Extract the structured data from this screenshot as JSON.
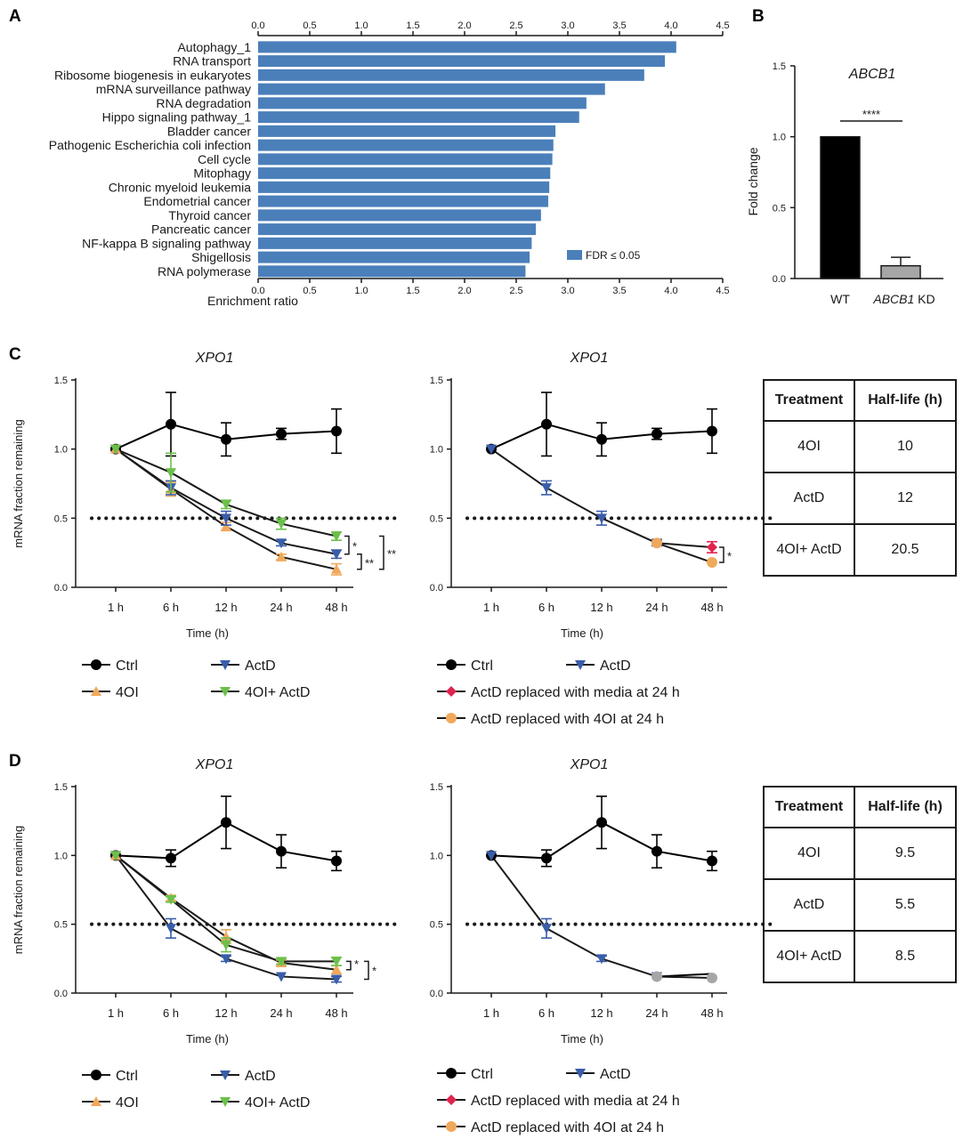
{
  "panels": {
    "A": "A",
    "B": "B",
    "C": "C",
    "D": "D"
  },
  "chart_data": [
    {
      "id": "A",
      "type": "bar",
      "orientation": "horizontal",
      "categories": [
        "Autophagy_1",
        "RNA transport",
        "Ribosome biogenesis in eukaryotes",
        "mRNA surveillance pathway",
        "RNA degradation",
        "Hippo signaling pathway_1",
        "Bladder cancer",
        "Pathogenic Escherichia coli infection",
        "Cell cycle",
        "Mitophagy",
        "Chronic myeloid leukemia",
        "Endometrial cancer",
        "Thyroid cancer",
        "Pancreatic cancer",
        "NF-kappa B signaling pathway",
        "Shigellosis",
        "RNA polymerase"
      ],
      "values": [
        4.05,
        3.94,
        3.74,
        3.36,
        3.18,
        3.11,
        2.88,
        2.86,
        2.85,
        2.83,
        2.82,
        2.81,
        2.74,
        2.69,
        2.65,
        2.63,
        2.59
      ],
      "xlim": [
        0,
        4.5
      ],
      "ticks": [
        "0.0",
        "0.5",
        "1.0",
        "1.5",
        "2.0",
        "2.5",
        "3.0",
        "3.5",
        "4.0",
        "4.5"
      ],
      "xlabel": "Enrichment ratio",
      "legend": "FDR ≤ 0.05",
      "legend_position": "bottom-right",
      "color": "#4a7fba"
    },
    {
      "id": "B",
      "type": "bar",
      "title": "ABCB1",
      "categories": [
        "WT",
        "ABCB1 KD"
      ],
      "category_plain": "WT",
      "category_italic": "ABCB1",
      "category_suffix": " KD",
      "values": [
        1.0,
        0.09
      ],
      "errors": [
        0,
        0.06
      ],
      "colors": [
        "#000000",
        "#a6a6a6"
      ],
      "ylabel": "Fold change",
      "ylim": [
        0,
        1.5
      ],
      "ticks": [
        "0.0",
        "0.5",
        "1.0",
        "1.5"
      ],
      "significance": "****"
    },
    {
      "id": "C1",
      "type": "line",
      "title": "XPO1",
      "ylabel": "mRNA fraction remaining",
      "xlabel": "Time (h)",
      "categories": [
        "1 h",
        "6 h",
        "12 h",
        "24 h",
        "48 h"
      ],
      "ylim": [
        0,
        1.5
      ],
      "ticks": [
        "0.0",
        "0.5",
        "1.0",
        "1.5"
      ],
      "threshold": 0.5,
      "series": [
        {
          "name": "Ctrl",
          "values": [
            1.0,
            1.18,
            1.07,
            1.11,
            1.13
          ],
          "errors": [
            0.01,
            0.23,
            0.12,
            0.04,
            0.16
          ],
          "color": "#000000",
          "marker": "circle"
        },
        {
          "name": "4OI",
          "values": [
            1.0,
            0.71,
            0.44,
            0.22,
            0.13
          ],
          "errors": [
            0.01,
            0.05,
            0.03,
            0.02,
            0.04
          ],
          "color": "#f0a95b",
          "marker": "triangle-up"
        },
        {
          "name": "ActD",
          "values": [
            1.0,
            0.72,
            0.5,
            0.32,
            0.24
          ],
          "errors": [
            0.01,
            0.05,
            0.05,
            0.02,
            0.03
          ],
          "color": "#3a5daa",
          "marker": "triangle-down"
        },
        {
          "name": "4OI+ ActD",
          "values": [
            1.0,
            0.83,
            0.6,
            0.46,
            0.37
          ],
          "errors": [
            0.01,
            0.14,
            0.03,
            0.04,
            0.03
          ],
          "color": "#6cc04a",
          "marker": "triangle-down"
        }
      ],
      "legend": [
        [
          "Ctrl",
          "ActD"
        ],
        [
          "4OI",
          "4OI+ ActD"
        ]
      ],
      "sig": [
        "*",
        "**",
        "**"
      ]
    },
    {
      "id": "C2",
      "type": "line",
      "title": "XPO1",
      "xlabel": "Time (h)",
      "categories": [
        "1 h",
        "6 h",
        "12 h",
        "24 h",
        "48 h"
      ],
      "ylim": [
        0,
        1.5
      ],
      "ticks": [
        "0.0",
        "0.5",
        "1.0",
        "1.5"
      ],
      "threshold": 0.5,
      "series": [
        {
          "name": "Ctrl",
          "values": [
            1.0,
            1.18,
            1.07,
            1.11,
            1.13
          ],
          "errors": [
            0.01,
            0.23,
            0.12,
            0.04,
            0.16
          ],
          "color": "#000000",
          "marker": "circle"
        },
        {
          "name": "ActD",
          "values": [
            1.0,
            0.72,
            0.5,
            0.32,
            null
          ],
          "errors": [
            0.01,
            0.05,
            0.05,
            0.02,
            null
          ],
          "color": "#3a5daa",
          "marker": "triangle-down"
        },
        {
          "name": "ActD replaced with media at 24 h",
          "values": [
            null,
            null,
            null,
            0.32,
            0.29
          ],
          "errors": [
            null,
            null,
            null,
            0,
            0.04
          ],
          "color": "#e0234e",
          "marker": "diamond"
        },
        {
          "name": "ActD replaced with 4OI at 24 h",
          "values": [
            null,
            null,
            null,
            0.32,
            0.18
          ],
          "errors": [
            null,
            null,
            null,
            0,
            0.01
          ],
          "color": "#f0a95b",
          "marker": "circle"
        }
      ],
      "legend": [
        [
          "Ctrl",
          "ActD"
        ],
        [
          "ActD replaced with media at 24 h"
        ],
        [
          "ActD replaced with 4OI at 24 h"
        ]
      ],
      "sig": [
        "*"
      ]
    },
    {
      "id": "D1",
      "type": "line",
      "title": "XPO1",
      "ylabel": "mRNA fraction remaining",
      "xlabel": "Time (h)",
      "categories": [
        "1 h",
        "6 h",
        "12 h",
        "24 h",
        "48 h"
      ],
      "ylim": [
        0,
        1.5
      ],
      "ticks": [
        "0.0",
        "0.5",
        "1.0",
        "1.5"
      ],
      "threshold": 0.5,
      "series": [
        {
          "name": "Ctrl",
          "values": [
            1.0,
            0.98,
            1.24,
            1.03,
            0.96
          ],
          "errors": [
            0.01,
            0.06,
            0.19,
            0.12,
            0.07
          ],
          "color": "#000000",
          "marker": "circle"
        },
        {
          "name": "4OI",
          "values": [
            1.0,
            0.69,
            0.41,
            0.22,
            0.17
          ],
          "errors": [
            0.01,
            0.02,
            0.05,
            0.02,
            0.03
          ],
          "color": "#f0a95b",
          "marker": "triangle-up"
        },
        {
          "name": "ActD",
          "values": [
            1.0,
            0.47,
            0.25,
            0.12,
            0.1
          ],
          "errors": [
            0.01,
            0.07,
            0.02,
            0.01,
            0.02
          ],
          "color": "#3a5daa",
          "marker": "triangle-down"
        },
        {
          "name": "4OI+ ActD",
          "values": [
            1.0,
            0.68,
            0.35,
            0.23,
            0.23
          ],
          "errors": [
            0.01,
            0.02,
            0.05,
            0.02,
            0.03
          ],
          "color": "#6cc04a",
          "marker": "triangle-down"
        }
      ],
      "legend": [
        [
          "Ctrl",
          "ActD"
        ],
        [
          "4OI",
          "4OI+ ActD"
        ]
      ],
      "sig": [
        "*",
        "*"
      ]
    },
    {
      "id": "D2",
      "type": "line",
      "title": "XPO1",
      "xlabel": "Time (h)",
      "categories": [
        "1 h",
        "6 h",
        "12 h",
        "24 h",
        "48 h"
      ],
      "ylim": [
        0,
        1.5
      ],
      "ticks": [
        "0.0",
        "0.5",
        "1.0",
        "1.5"
      ],
      "threshold": 0.5,
      "series": [
        {
          "name": "Ctrl",
          "values": [
            1.0,
            0.98,
            1.24,
            1.03,
            0.96
          ],
          "errors": [
            0.01,
            0.06,
            0.19,
            0.12,
            0.07
          ],
          "color": "#000000",
          "marker": "circle"
        },
        {
          "name": "ActD",
          "values": [
            1.0,
            0.47,
            0.25,
            0.12,
            null
          ],
          "errors": [
            0.01,
            0.07,
            0.02,
            0.01,
            null
          ],
          "color": "#3a5daa",
          "marker": "triangle-down"
        },
        {
          "name": "ActD replaced with media at 24 h",
          "values": [
            null,
            null,
            null,
            0.12,
            0.14
          ],
          "errors": [
            null,
            null,
            null,
            0,
            0.01
          ],
          "color": "#000000",
          "marker": "none"
        },
        {
          "name": "ActD replaced with 4OI at 24 h",
          "values": [
            null,
            null,
            null,
            0.12,
            0.11
          ],
          "errors": [
            null,
            null,
            null,
            0,
            0.01
          ],
          "color": "#a6a6a6",
          "marker": "circle"
        }
      ],
      "legend": [
        [
          "Ctrl",
          "ActD"
        ],
        [
          "ActD replaced with media at 24 h"
        ],
        [
          "ActD replaced with 4OI at 24 h"
        ]
      ],
      "legend_colors": {
        "ActD replaced with media at 24 h": "#e0234e",
        "ActD replaced with 4OI at 24 h": "#f0a95b"
      },
      "sig": []
    }
  ],
  "tables": {
    "C": {
      "headers": [
        "Treatment",
        "Half-life (h)"
      ],
      "rows": [
        [
          "4OI",
          "10"
        ],
        [
          "ActD",
          "12"
        ],
        [
          "4OI+ ActD",
          "20.5"
        ]
      ]
    },
    "D": {
      "headers": [
        "Treatment",
        "Half-life (h)"
      ],
      "rows": [
        [
          "4OI",
          "9.5"
        ],
        [
          "ActD",
          "5.5"
        ],
        [
          "4OI+ ActD",
          "8.5"
        ]
      ]
    }
  }
}
